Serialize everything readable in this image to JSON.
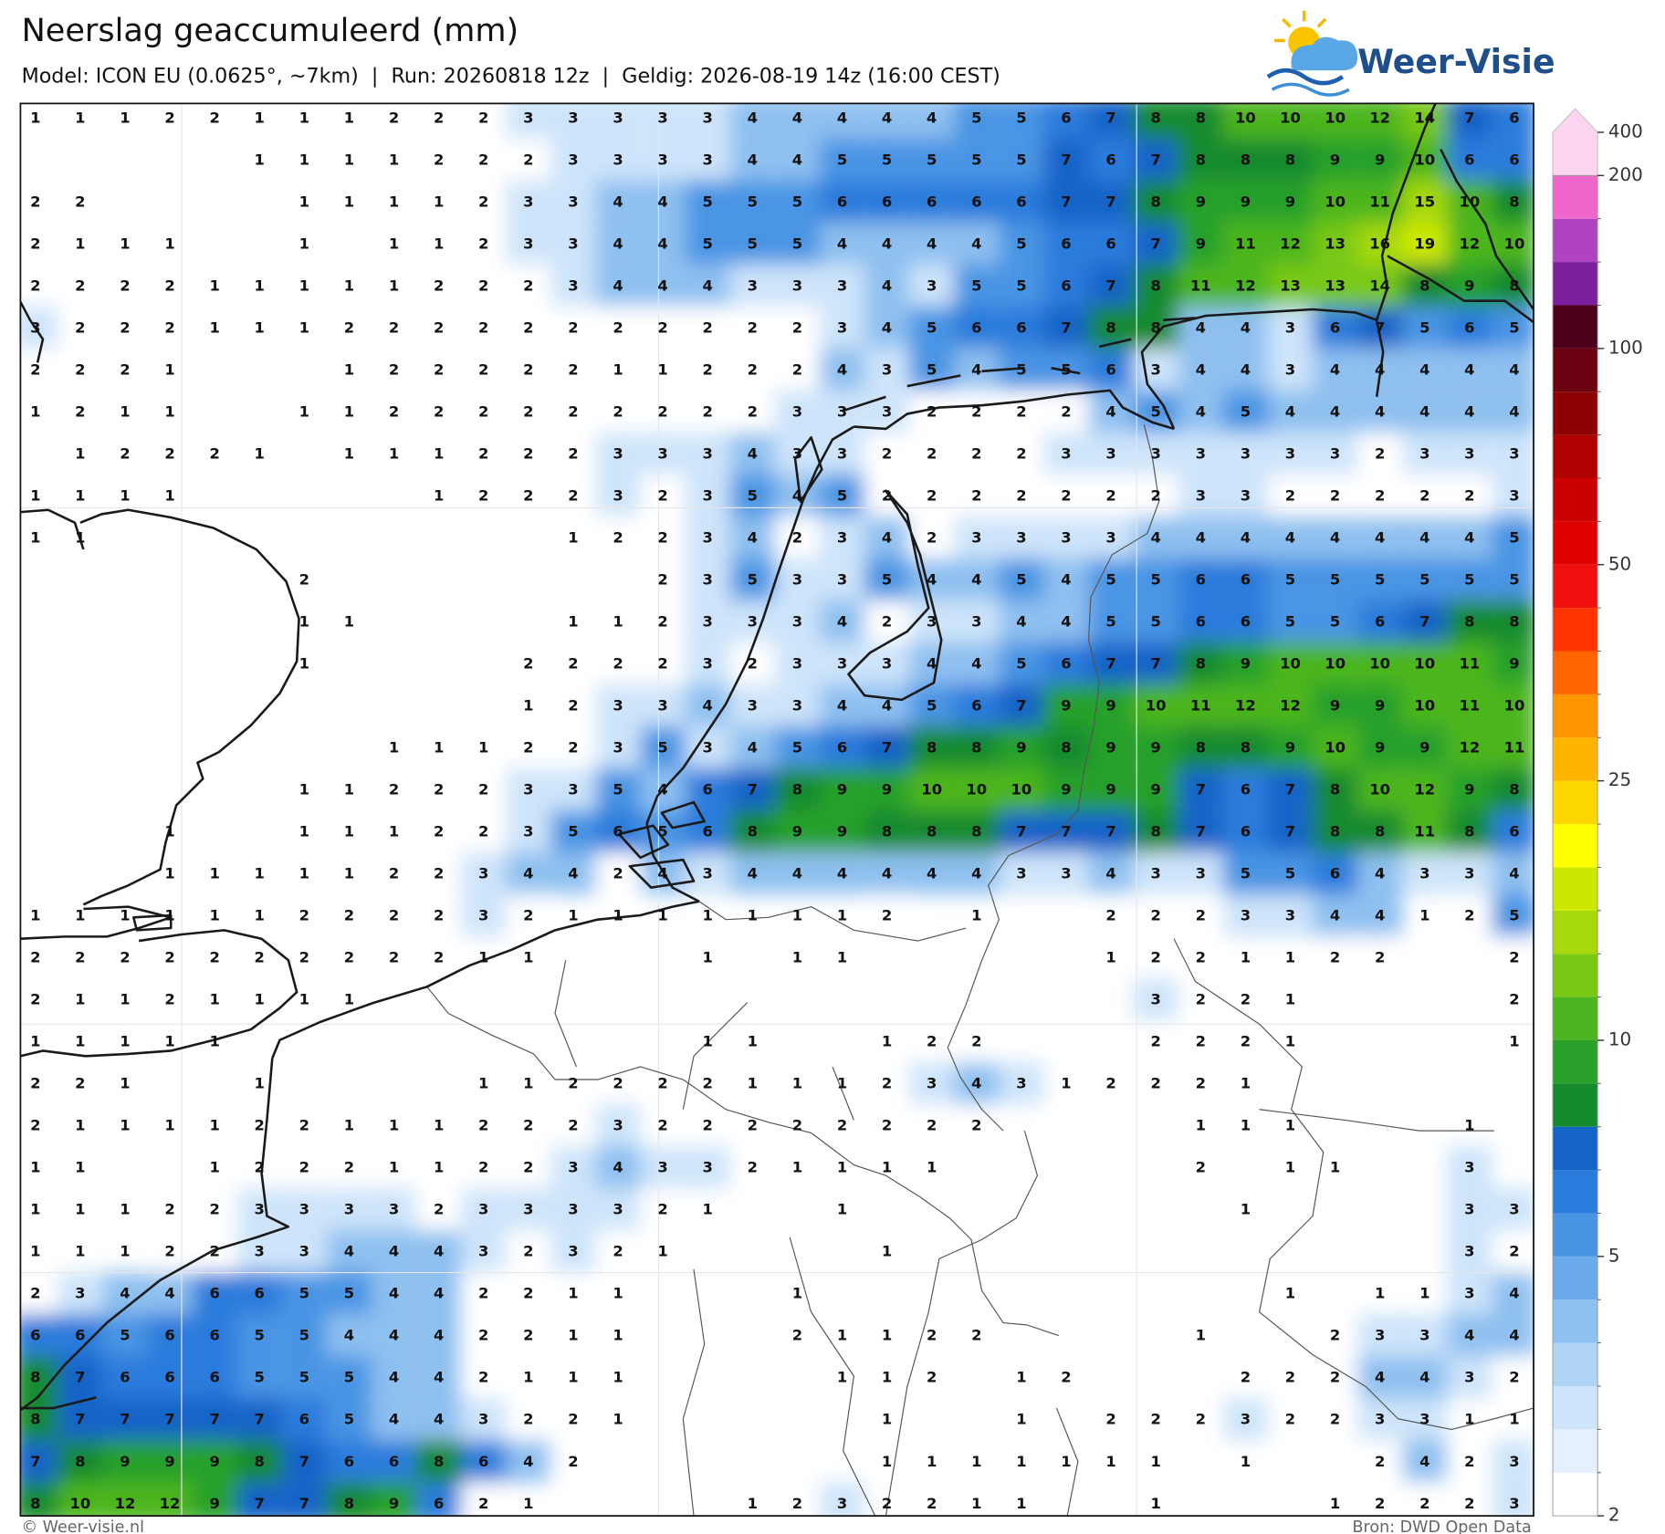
{
  "header": {
    "title": "Neerslag geaccumuleerd (mm)",
    "subtitle": "Model: ICON EU (0.0625°, ~7km)  |  Run: 20260818 12z  |  Geldig: 2026-08-19 14z (16:00 CEST)",
    "logo": "Weer-Visie"
  },
  "map": {
    "grid": [
      [
        1,
        1,
        1,
        2,
        2,
        1,
        1,
        1,
        2,
        2,
        2,
        3,
        3,
        3,
        3,
        3,
        4,
        4,
        4,
        4,
        4,
        5,
        5,
        6,
        7,
        8,
        8,
        10,
        10,
        10,
        12,
        14,
        7,
        6
      ],
      [
        null,
        null,
        null,
        null,
        null,
        1,
        1,
        1,
        1,
        2,
        2,
        2,
        3,
        3,
        3,
        3,
        4,
        4,
        5,
        5,
        5,
        5,
        5,
        7,
        6,
        7,
        8,
        8,
        8,
        9,
        9,
        10,
        6,
        6
      ],
      [
        2,
        2,
        null,
        null,
        null,
        null,
        1,
        1,
        1,
        1,
        2,
        3,
        3,
        4,
        4,
        5,
        5,
        5,
        6,
        6,
        6,
        6,
        6,
        7,
        7,
        8,
        9,
        9,
        9,
        10,
        11,
        15,
        10,
        8
      ],
      [
        2,
        1,
        1,
        1,
        null,
        null,
        1,
        null,
        1,
        1,
        2,
        3,
        3,
        4,
        4,
        5,
        5,
        5,
        4,
        4,
        4,
        4,
        5,
        6,
        6,
        7,
        9,
        11,
        12,
        13,
        16,
        19,
        12,
        10
      ],
      [
        2,
        2,
        2,
        2,
        1,
        1,
        1,
        1,
        1,
        2,
        2,
        2,
        3,
        4,
        4,
        4,
        3,
        3,
        3,
        4,
        3,
        5,
        5,
        6,
        7,
        8,
        11,
        12,
        13,
        13,
        14,
        8,
        9,
        8
      ],
      [
        3,
        2,
        2,
        2,
        1,
        1,
        1,
        2,
        2,
        2,
        2,
        2,
        2,
        2,
        2,
        2,
        2,
        2,
        3,
        4,
        5,
        6,
        6,
        7,
        8,
        8,
        4,
        4,
        3,
        6,
        7,
        5,
        6,
        5
      ],
      [
        2,
        2,
        2,
        1,
        null,
        null,
        null,
        1,
        2,
        2,
        2,
        2,
        2,
        1,
        1,
        2,
        2,
        2,
        4,
        3,
        5,
        4,
        5,
        5,
        6,
        3,
        4,
        4,
        3,
        4,
        4,
        4,
        4,
        4
      ],
      [
        1,
        2,
        1,
        1,
        null,
        null,
        1,
        1,
        2,
        2,
        2,
        2,
        2,
        2,
        2,
        2,
        2,
        3,
        3,
        3,
        2,
        2,
        2,
        2,
        4,
        5,
        4,
        5,
        4,
        4,
        4,
        4,
        4,
        4
      ],
      [
        null,
        1,
        2,
        2,
        2,
        1,
        null,
        1,
        1,
        1,
        2,
        2,
        2,
        3,
        3,
        3,
        4,
        3,
        3,
        2,
        2,
        2,
        2,
        3,
        3,
        3,
        3,
        3,
        3,
        3,
        2,
        3,
        3,
        3
      ],
      [
        1,
        1,
        1,
        1,
        null,
        null,
        null,
        null,
        null,
        1,
        2,
        2,
        2,
        3,
        2,
        3,
        5,
        4,
        5,
        2,
        2,
        2,
        2,
        2,
        2,
        2,
        3,
        3,
        2,
        2,
        2,
        2,
        2,
        3
      ],
      [
        1,
        1,
        null,
        null,
        null,
        null,
        null,
        null,
        null,
        null,
        null,
        null,
        1,
        2,
        2,
        3,
        4,
        2,
        3,
        4,
        2,
        3,
        3,
        3,
        3,
        4,
        4,
        4,
        4,
        4,
        4,
        4,
        4,
        5
      ],
      [
        null,
        null,
        null,
        null,
        null,
        null,
        2,
        null,
        null,
        null,
        null,
        null,
        null,
        null,
        2,
        3,
        5,
        3,
        3,
        5,
        4,
        4,
        5,
        4,
        5,
        5,
        6,
        6,
        5,
        5,
        5,
        5,
        5,
        5
      ],
      [
        null,
        null,
        null,
        null,
        null,
        null,
        1,
        1,
        null,
        null,
        null,
        null,
        1,
        1,
        2,
        3,
        3,
        3,
        4,
        2,
        3,
        3,
        4,
        4,
        5,
        5,
        6,
        6,
        5,
        5,
        6,
        7,
        8,
        8
      ],
      [
        null,
        null,
        null,
        null,
        null,
        null,
        1,
        null,
        null,
        null,
        null,
        2,
        2,
        2,
        2,
        3,
        2,
        3,
        3,
        3,
        4,
        4,
        5,
        6,
        7,
        7,
        8,
        9,
        10,
        10,
        10,
        10,
        11,
        9
      ],
      [
        null,
        null,
        null,
        null,
        null,
        null,
        null,
        null,
        null,
        null,
        null,
        1,
        2,
        3,
        3,
        4,
        3,
        3,
        4,
        4,
        5,
        6,
        7,
        9,
        9,
        10,
        11,
        12,
        12,
        9,
        9,
        10,
        11,
        10
      ],
      [
        null,
        null,
        null,
        null,
        null,
        null,
        null,
        null,
        1,
        1,
        1,
        2,
        2,
        3,
        5,
        3,
        4,
        5,
        6,
        7,
        8,
        8,
        9,
        8,
        9,
        9,
        8,
        8,
        9,
        10,
        9,
        9,
        12,
        11
      ],
      [
        null,
        null,
        null,
        null,
        null,
        null,
        1,
        1,
        2,
        2,
        2,
        3,
        3,
        5,
        4,
        6,
        7,
        8,
        9,
        9,
        10,
        10,
        10,
        9,
        9,
        9,
        7,
        6,
        7,
        8,
        10,
        12,
        9,
        8
      ],
      [
        null,
        null,
        null,
        1,
        null,
        null,
        1,
        1,
        1,
        2,
        2,
        3,
        5,
        6,
        5,
        6,
        8,
        9,
        9,
        8,
        8,
        8,
        7,
        7,
        7,
        8,
        7,
        6,
        7,
        8,
        8,
        11,
        8,
        6
      ],
      [
        null,
        null,
        null,
        1,
        1,
        1,
        1,
        1,
        2,
        2,
        3,
        4,
        4,
        2,
        4,
        3,
        4,
        4,
        4,
        4,
        4,
        4,
        3,
        3,
        4,
        3,
        3,
        5,
        5,
        6,
        4,
        3,
        3,
        4
      ],
      [
        1,
        1,
        1,
        1,
        1,
        1,
        2,
        2,
        2,
        2,
        3,
        2,
        1,
        1,
        1,
        1,
        1,
        1,
        1,
        2,
        null,
        1,
        null,
        null,
        2,
        2,
        2,
        3,
        3,
        4,
        4,
        1,
        2,
        5
      ],
      [
        2,
        2,
        2,
        2,
        2,
        2,
        2,
        2,
        2,
        2,
        1,
        1,
        null,
        null,
        null,
        1,
        null,
        1,
        1,
        null,
        null,
        null,
        null,
        null,
        1,
        2,
        2,
        1,
        1,
        2,
        2,
        null,
        null,
        2
      ],
      [
        2,
        1,
        1,
        2,
        1,
        1,
        1,
        1,
        null,
        null,
        null,
        null,
        null,
        null,
        null,
        null,
        null,
        null,
        null,
        null,
        null,
        null,
        null,
        null,
        null,
        3,
        2,
        2,
        1,
        null,
        null,
        null,
        null,
        2
      ],
      [
        1,
        1,
        1,
        1,
        1,
        null,
        null,
        null,
        null,
        null,
        null,
        null,
        null,
        null,
        null,
        1,
        1,
        null,
        null,
        1,
        2,
        2,
        null,
        null,
        null,
        2,
        2,
        2,
        1,
        null,
        null,
        null,
        null,
        1
      ],
      [
        2,
        2,
        1,
        null,
        null,
        1,
        null,
        null,
        null,
        null,
        1,
        1,
        2,
        2,
        2,
        2,
        1,
        1,
        1,
        2,
        3,
        4,
        3,
        1,
        2,
        2,
        2,
        1,
        null,
        null,
        null,
        null,
        null,
        null
      ],
      [
        2,
        1,
        1,
        1,
        1,
        2,
        2,
        1,
        1,
        1,
        2,
        2,
        2,
        3,
        2,
        2,
        2,
        2,
        2,
        2,
        2,
        2,
        null,
        null,
        null,
        null,
        1,
        1,
        1,
        null,
        null,
        null,
        1,
        null
      ],
      [
        1,
        1,
        null,
        null,
        1,
        2,
        2,
        2,
        1,
        1,
        2,
        2,
        3,
        4,
        3,
        3,
        2,
        1,
        1,
        1,
        1,
        null,
        null,
        null,
        null,
        null,
        2,
        null,
        1,
        1,
        null,
        null,
        3,
        null
      ],
      [
        1,
        1,
        1,
        2,
        2,
        3,
        3,
        3,
        3,
        2,
        3,
        3,
        3,
        3,
        2,
        1,
        null,
        null,
        1,
        null,
        null,
        null,
        null,
        null,
        null,
        null,
        null,
        1,
        null,
        null,
        null,
        null,
        3,
        3
      ],
      [
        1,
        1,
        1,
        2,
        2,
        3,
        3,
        4,
        4,
        4,
        3,
        2,
        3,
        2,
        1,
        null,
        null,
        null,
        null,
        1,
        null,
        null,
        null,
        null,
        null,
        null,
        null,
        null,
        null,
        null,
        null,
        null,
        3,
        2
      ],
      [
        2,
        3,
        4,
        4,
        6,
        6,
        5,
        5,
        4,
        4,
        2,
        2,
        1,
        1,
        null,
        null,
        null,
        1,
        null,
        null,
        null,
        null,
        null,
        null,
        null,
        null,
        null,
        null,
        1,
        null,
        1,
        1,
        3,
        4
      ],
      [
        6,
        6,
        5,
        6,
        6,
        5,
        5,
        4,
        4,
        4,
        2,
        2,
        1,
        1,
        null,
        null,
        null,
        2,
        1,
        1,
        2,
        2,
        null,
        null,
        null,
        null,
        1,
        null,
        null,
        2,
        3,
        3,
        4,
        4
      ],
      [
        8,
        7,
        6,
        6,
        6,
        5,
        5,
        5,
        4,
        4,
        2,
        1,
        1,
        1,
        null,
        null,
        null,
        null,
        1,
        1,
        2,
        null,
        1,
        2,
        null,
        null,
        null,
        2,
        2,
        2,
        4,
        4,
        3,
        2
      ],
      [
        8,
        7,
        7,
        7,
        7,
        7,
        6,
        5,
        4,
        4,
        3,
        2,
        2,
        1,
        null,
        null,
        null,
        null,
        null,
        1,
        null,
        null,
        1,
        null,
        2,
        2,
        2,
        3,
        2,
        2,
        3,
        3,
        1,
        1
      ],
      [
        7,
        8,
        9,
        9,
        9,
        8,
        7,
        6,
        6,
        8,
        6,
        4,
        2,
        null,
        null,
        null,
        null,
        null,
        null,
        1,
        1,
        1,
        1,
        1,
        1,
        1,
        null,
        1,
        null,
        null,
        2,
        4,
        2,
        3
      ],
      [
        8,
        10,
        12,
        12,
        9,
        7,
        7,
        8,
        9,
        6,
        2,
        1,
        null,
        null,
        null,
        null,
        1,
        2,
        3,
        2,
        2,
        1,
        1,
        null,
        null,
        1,
        null,
        null,
        null,
        1,
        2,
        2,
        2,
        3
      ]
    ]
  },
  "colorbar": {
    "levels": [
      2,
      2.5,
      3,
      3.5,
      4,
      4.5,
      5,
      6,
      7,
      8,
      9,
      10,
      12.5,
      15,
      17.5,
      20,
      22.5,
      25,
      30,
      35,
      40,
      45,
      50,
      60,
      70,
      80,
      90,
      100,
      125,
      150,
      175,
      200,
      400
    ],
    "colors": [
      "#ffffff",
      "#e4f0fd",
      "#cde4fa",
      "#b0d4f6",
      "#8ec0f0",
      "#6aaaea",
      "#4a94e4",
      "#2a7cdc",
      "#1464c8",
      "#128a2d",
      "#28a02a",
      "#4cb51f",
      "#78c814",
      "#a6d80a",
      "#cce800",
      "#ffff00",
      "#ffd700",
      "#ffb400",
      "#ff9500",
      "#ff6600",
      "#ff3300",
      "#f01010",
      "#e00000",
      "#cc0000",
      "#b00000",
      "#8b0000",
      "#6a0010",
      "#4d0019",
      "#7a1e9c",
      "#b043c0",
      "#ee66cc",
      "#fcd6f0"
    ],
    "ticks": [
      2,
      5,
      10,
      25,
      50,
      100,
      200,
      400
    ]
  },
  "footer": {
    "left": "© Weer-visie.nl",
    "right": "Bron: DWD Open Data"
  }
}
